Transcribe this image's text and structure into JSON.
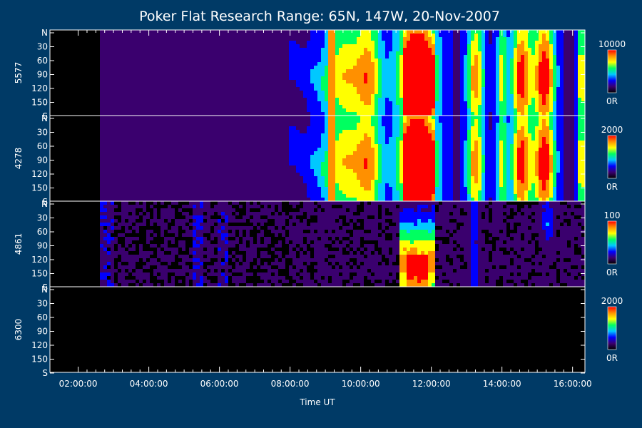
{
  "chart_data": {
    "type": "heatmap",
    "title": "Poker Flat Research Range: 65N, 147W, 20-Nov-2007",
    "xlabel": "Time UT",
    "x_ticks": [
      "02:00:00",
      "04:00:00",
      "06:00:00",
      "08:00:00",
      "10:00:00",
      "12:00:00",
      "14:00:00",
      "16:00:00"
    ],
    "x_range_hours": [
      1.2,
      16.35
    ],
    "y_ticks": [
      "N",
      "30",
      "60",
      "90",
      "120",
      "150",
      "S"
    ],
    "y_range": [
      0,
      180
    ],
    "panels": [
      {
        "name": "5577",
        "scale_max": "10000",
        "scale_min": "0R"
      },
      {
        "name": "4278",
        "scale_max": "2000",
        "scale_min": "0R"
      },
      {
        "name": "4861",
        "scale_max": "100",
        "scale_min": "0R"
      },
      {
        "name": "6300",
        "scale_max": "2000",
        "scale_min": "0R"
      }
    ],
    "colormap": [
      "#000000",
      "#3a006e",
      "#0000ff",
      "#00c8ff",
      "#00ff60",
      "#ffff00",
      "#ff9000",
      "#ff0000"
    ],
    "colors": {
      "background": "#003a66",
      "frame": "#ffffff"
    }
  }
}
